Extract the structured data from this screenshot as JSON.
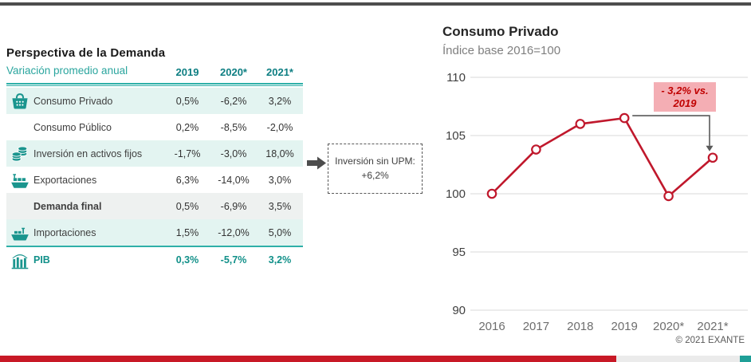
{
  "demand_table": {
    "title": "Perspectiva de la Demanda",
    "subtitle": "Variación promedio anual",
    "columns": [
      "2019",
      "2020*",
      "2021*"
    ],
    "rows": [
      {
        "label": "Consumo Privado",
        "icon": "basket-icon",
        "values": [
          "0,5%",
          "-6,2%",
          "3,2%"
        ]
      },
      {
        "label": "Consumo Público",
        "icon": null,
        "values": [
          "0,2%",
          "-8,5%",
          "-2,0%"
        ]
      },
      {
        "label": "Inversión en activos fijos",
        "icon": "coins-icon",
        "values": [
          "-1,7%",
          "-3,0%",
          "18,0%"
        ]
      },
      {
        "label": "Exportaciones",
        "icon": "export-ship-icon",
        "values": [
          "6,3%",
          "-14,0%",
          "3,0%"
        ]
      },
      {
        "label": "Demanda final",
        "icon": null,
        "values": [
          "0,5%",
          "-6,9%",
          "3,5%"
        ]
      },
      {
        "label": "Importaciones",
        "icon": "import-ship-icon",
        "values": [
          "1,5%",
          "-12,0%",
          "5,0%"
        ]
      },
      {
        "label": "PIB",
        "icon": "bar-chart-icon",
        "values": [
          "0,3%",
          "-5,7%",
          "3,2%"
        ]
      }
    ]
  },
  "callout": {
    "line1": "Inversión sin UPM:",
    "line2": "+6,2%"
  },
  "chart_data": {
    "type": "line",
    "title": "Consumo Privado",
    "subtitle": "Índice base 2016=100",
    "categories": [
      "2016",
      "2017",
      "2018",
      "2019",
      "2020*",
      "2021*"
    ],
    "series": [
      {
        "name": "Consumo Privado",
        "values": [
          100,
          103.8,
          106.0,
          106.5,
          99.8,
          103.1
        ]
      }
    ],
    "ylim": [
      90,
      110
    ],
    "yticks": [
      110,
      105,
      100,
      95,
      90
    ],
    "grid": true,
    "legend": "none",
    "line_color": "#c0182c",
    "marker_fill": "#ffffff",
    "gridline_color": "#d9d9d9",
    "annotation": {
      "line1": "- 3,2% vs.",
      "line2": "2019",
      "box_color": "#f4aeb4",
      "text_color": "#c00000",
      "connector_color": "#595959",
      "from_category": "2019",
      "to_category": "2021*"
    }
  },
  "footer": {
    "copyright": "© 2021 EXANTE"
  },
  "accent_colors": {
    "teal": "#1a958e",
    "dark_teal_text": "#0d7e82",
    "row_teal_bg": "#e3f4f1",
    "red_bar": "#c81926",
    "top_rule_gray": "#4d4d4d"
  }
}
